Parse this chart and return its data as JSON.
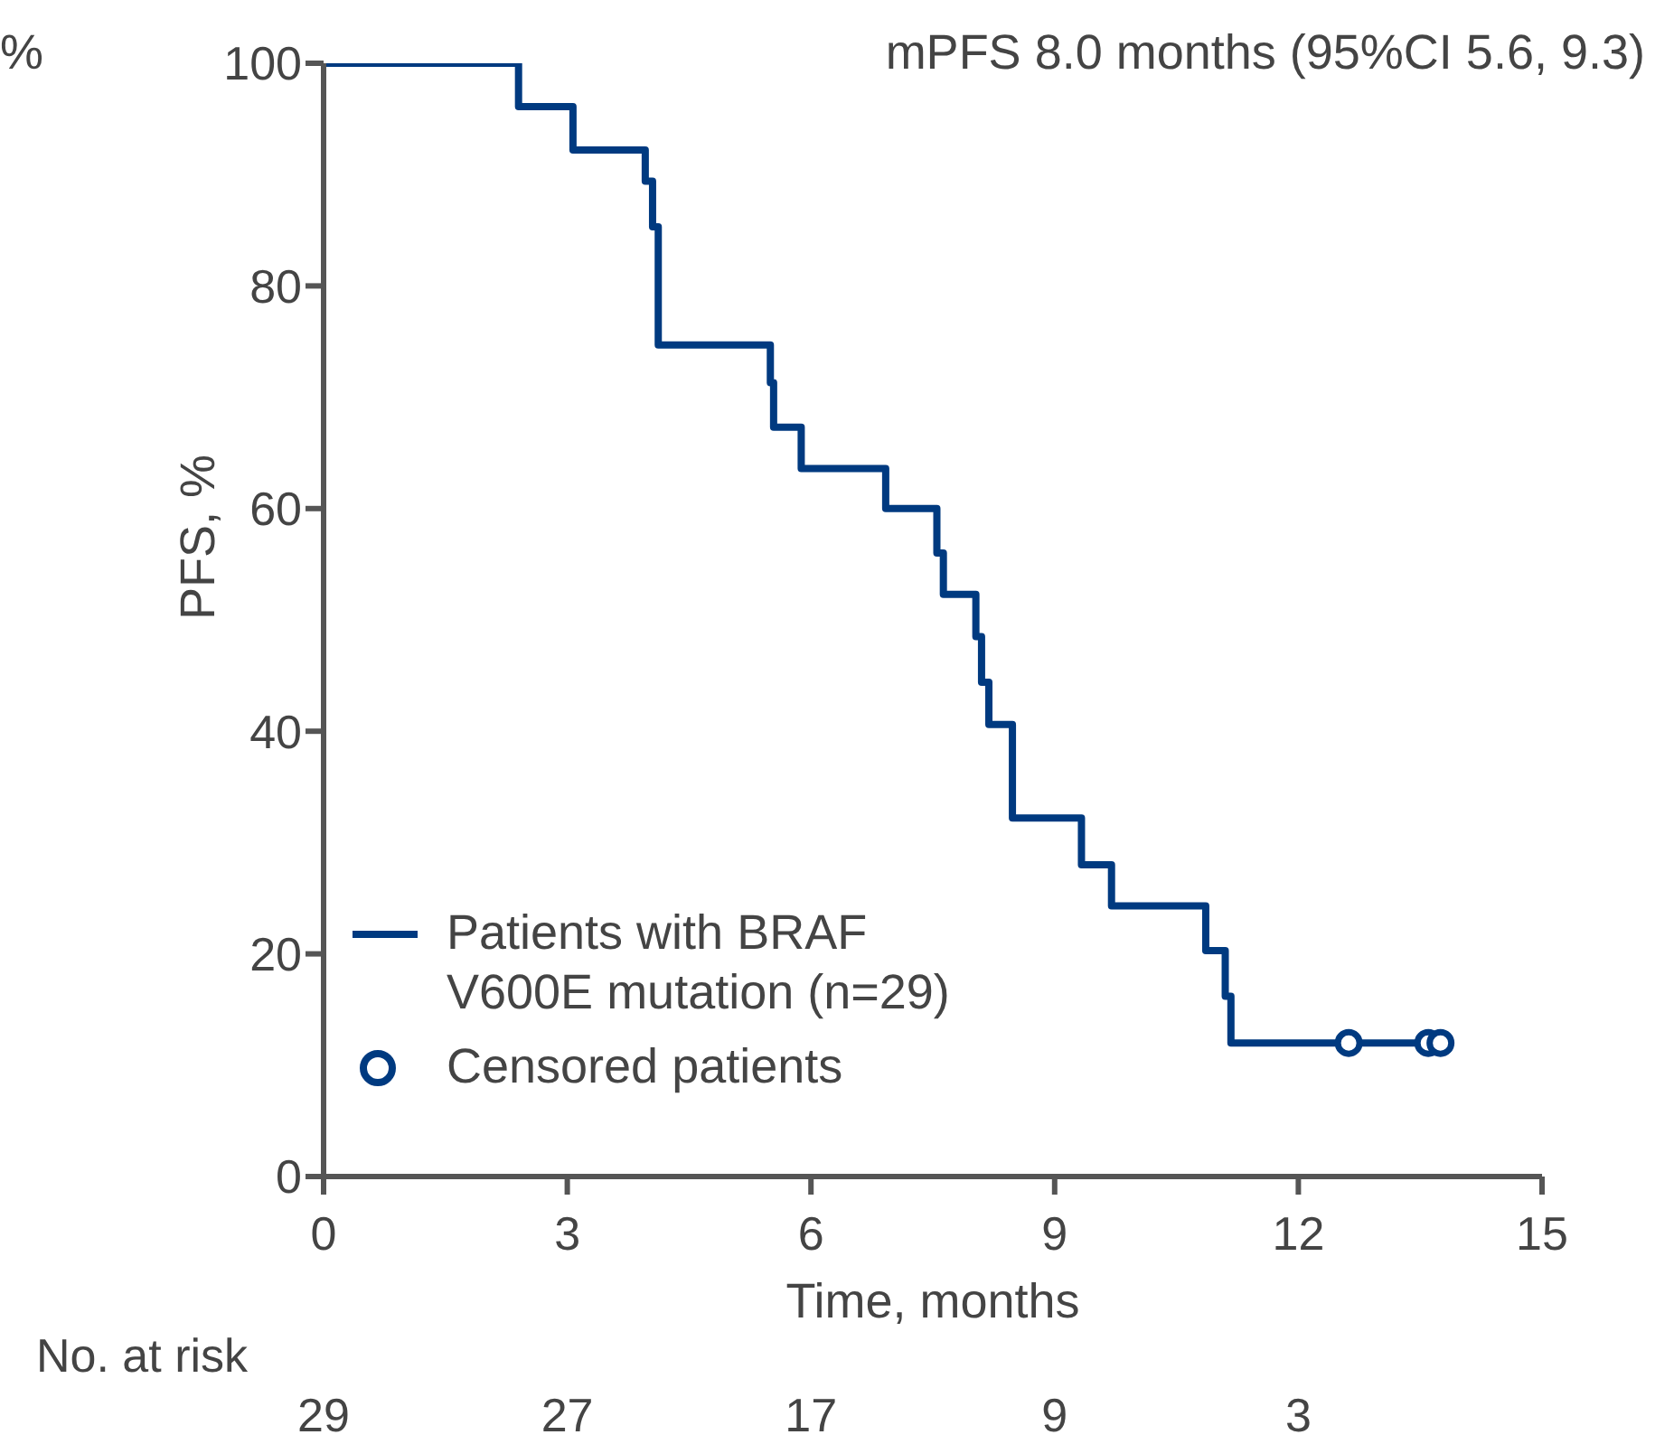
{
  "chart_data": {
    "type": "step",
    "title": "mPFS 8.0 months (95%CI 5.6, 9.3)",
    "xlabel": "Time, months",
    "ylabel": "PFS, %",
    "xlim": [
      0,
      15
    ],
    "xticks": [
      0,
      3,
      6,
      9,
      12,
      15
    ],
    "ylim": [
      0,
      100
    ],
    "yticks": [
      0,
      20,
      40,
      60,
      80,
      100
    ],
    "grid": false,
    "legend": "bottom left",
    "line_style": "solid",
    "series": [
      {
        "name": "Patients with BRAF V600E mutation (n=29)",
        "marker": "none",
        "color": "#003a80",
        "x": [
          0,
          2.4,
          3.07,
          3.96,
          4.05,
          4.12,
          5.5,
          5.54,
          5.88,
          6.92,
          7.55,
          7.63,
          8.03,
          8.1,
          8.19,
          8.48,
          9.33,
          9.7,
          10.86,
          11.1,
          11.17,
          13.75
        ],
        "values": [
          100,
          96.1,
          92.2,
          89.4,
          85.3,
          74.7,
          71.3,
          67.3,
          63.6,
          60,
          56,
          52.3,
          48.5,
          44.4,
          40.6,
          32.2,
          28,
          24.3,
          20.3,
          16.2,
          12,
          12
        ]
      },
      {
        "name": "Censored patients",
        "type": "scatter",
        "marker": "circle",
        "color": "#003a80",
        "x": [
          12.62,
          13.6,
          13.75
        ],
        "values": [
          12,
          12,
          12
        ]
      }
    ],
    "annotations": [
      "%",
      "No. at risk",
      "29",
      "27",
      "17",
      "9",
      "3"
    ]
  }
}
